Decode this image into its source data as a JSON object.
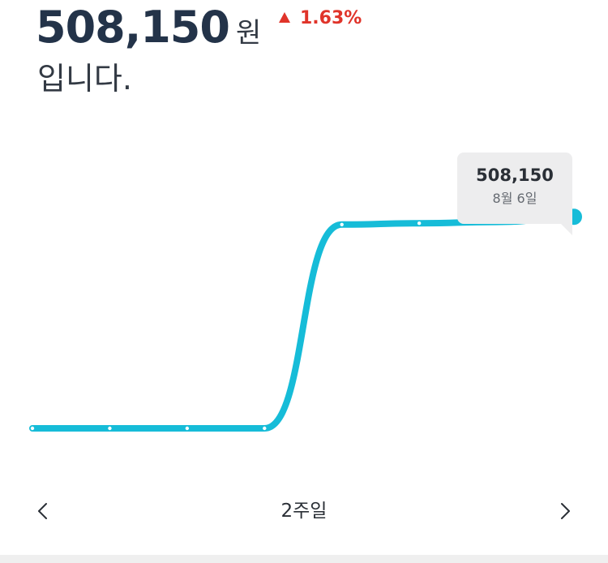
{
  "header": {
    "price": "508,150",
    "unit": "원",
    "change": "1.63%",
    "suffix": "입니다."
  },
  "tooltip": {
    "value": "508,150",
    "date": "8월 6일"
  },
  "nav": {
    "period_label": "2주일",
    "prev_icon": "chevron-left-icon",
    "next_icon": "chevron-right-icon"
  },
  "colors": {
    "price": "#233349",
    "up": "#e0342a",
    "line": "#16bcd8",
    "tooltip_bg": "#ededee"
  },
  "chart_data": {
    "type": "line",
    "title": "",
    "xlabel": "",
    "ylabel": "",
    "ylim": [
      499000,
      509000
    ],
    "grid": false,
    "legend": "none",
    "x": [
      1,
      2,
      3,
      4,
      5,
      6,
      7,
      8
    ],
    "series": [
      {
        "values": [
          500000,
          500000,
          500000,
          500000,
          507850,
          507900,
          507950,
          508150
        ]
      }
    ],
    "annotations": [
      {
        "point_index": 7,
        "value": "508,150",
        "date": "8월 6일"
      }
    ]
  }
}
